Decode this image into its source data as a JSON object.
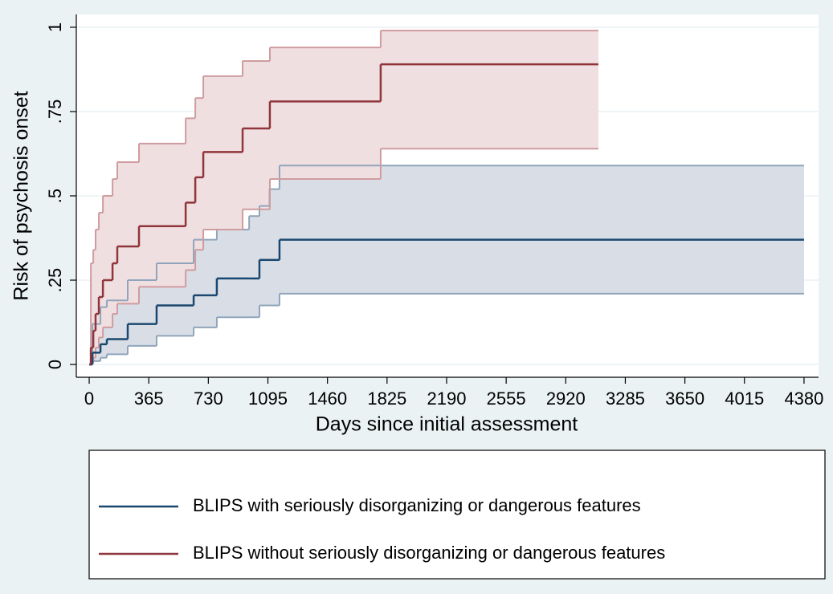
{
  "chart_data": {
    "type": "km-failure",
    "x_label": "Days since initial assessment",
    "y_label": "Risk of psychosis onset",
    "xlim": [
      -79,
      4469
    ],
    "ylim": [
      -0.038,
      1.038
    ],
    "xticks": [
      0,
      365,
      730,
      1095,
      1460,
      1825,
      2190,
      2555,
      2920,
      3285,
      3650,
      4015,
      4380
    ],
    "yticks": [
      0,
      {
        "value": 0.25,
        "label": ".25"
      },
      {
        "value": 0.5,
        "label": ".5"
      },
      {
        "value": 0.75,
        "label": ".75"
      },
      1
    ],
    "grid": true,
    "series": [
      {
        "name": "BLIPS with seriously disorganizing or dangerous features",
        "color": "#1a476f",
        "ci_color": "#90a5bb",
        "ci_fill": "#d9dee6",
        "x": [
          0,
          20,
          69,
          108,
          236,
          413,
          640,
          782,
          980,
          1043,
          1105,
          1166,
          4380
        ],
        "values": [
          0,
          0.035,
          0.06,
          0.075,
          0.12,
          0.175,
          0.205,
          0.255,
          0.255,
          0.31,
          0.31,
          0.37,
          0.37
        ],
        "lower": [
          0,
          0.01,
          0.02,
          0.03,
          0.055,
          0.085,
          0.11,
          0.14,
          0.14,
          0.175,
          0.175,
          0.21,
          0.21
        ],
        "upper": [
          0,
          0.12,
          0.17,
          0.19,
          0.25,
          0.3,
          0.37,
          0.4,
          0.44,
          0.47,
          0.52,
          0.59,
          0.59
        ]
      },
      {
        "name": "BLIPS without seriously disorganizing or dangerous features",
        "color": "#90353b",
        "ci_color": "#cf9ca0",
        "ci_fill": "#f0dfe0",
        "x": [
          0,
          10,
          25,
          39,
          59,
          84,
          143,
          172,
          305,
          591,
          650,
          699,
          940,
          1107,
          1786,
          3120
        ],
        "values": [
          0,
          0.05,
          0.1,
          0.15,
          0.2,
          0.25,
          0.3,
          0.35,
          0.41,
          0.48,
          0.555,
          0.63,
          0.7,
          0.78,
          0.89,
          0.89
        ],
        "lower": [
          0,
          0.005,
          0.02,
          0.05,
          0.08,
          0.11,
          0.15,
          0.18,
          0.23,
          0.28,
          0.34,
          0.4,
          0.46,
          0.55,
          0.64,
          0.64
        ],
        "upper": [
          0,
          0.3,
          0.34,
          0.4,
          0.45,
          0.5,
          0.55,
          0.6,
          0.655,
          0.73,
          0.79,
          0.855,
          0.9,
          0.94,
          0.99,
          0.99
        ]
      }
    ]
  }
}
